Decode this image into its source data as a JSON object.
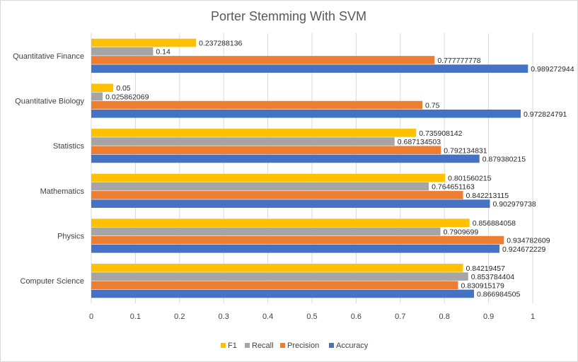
{
  "chart_data": {
    "type": "bar",
    "orientation": "horizontal",
    "title": "Porter Stemming With SVM",
    "xlabel": "",
    "ylabel": "",
    "xlim": [
      0,
      1
    ],
    "x_ticks": [
      "0",
      "0.1",
      "0.2",
      "0.3",
      "0.4",
      "0.5",
      "0.6",
      "0.7",
      "0.8",
      "0.9",
      "1"
    ],
    "grid": true,
    "legend_position": "bottom",
    "categories": [
      "Quantitative Finance",
      "Quantitative Biology",
      "Statistics",
      "Mathematics",
      "Physics",
      "Computer Science"
    ],
    "series": [
      {
        "name": "F1",
        "color": "#FFC000",
        "values": [
          0.237288136,
          0.05,
          0.735908142,
          0.801560215,
          0.856884058,
          0.84219457
        ],
        "labels": [
          "0.237288136",
          "0.05",
          "0.735908142",
          "0.801560215",
          "0.856884058",
          "0.84219457"
        ]
      },
      {
        "name": "Recall",
        "color": "#A5A5A5",
        "values": [
          0.14,
          0.025862069,
          0.687134503,
          0.764651163,
          0.7909699,
          0.853784404
        ],
        "labels": [
          "0.14",
          "0.025862069",
          "0.687134503",
          "0.764651163",
          "0.7909699",
          "0.853784404"
        ]
      },
      {
        "name": "Precision",
        "color": "#ED7D31",
        "values": [
          0.777777778,
          0.75,
          0.792134831,
          0.842213115,
          0.934782609,
          0.830915179
        ],
        "labels": [
          "0.777777778",
          "0.75",
          "0.792134831",
          "0.842213115",
          "0.934782609",
          "0.830915179"
        ]
      },
      {
        "name": "Accuracy",
        "color": "#4472C4",
        "values": [
          0.989272944,
          0.972824791,
          0.879380215,
          0.902979738,
          0.924672229,
          0.866984505
        ],
        "labels": [
          "0.989272944",
          "0.972824791",
          "0.879380215",
          "0.902979738",
          "0.924672229",
          "0.866984505"
        ]
      }
    ]
  }
}
